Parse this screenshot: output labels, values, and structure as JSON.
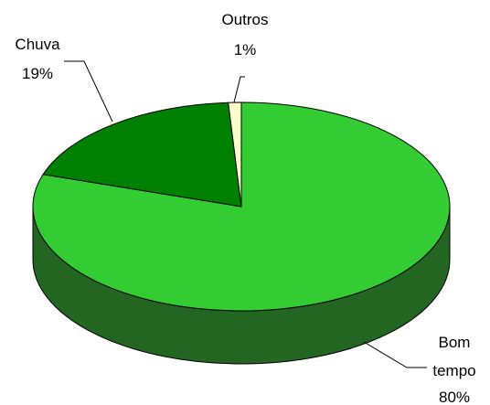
{
  "chart_data": {
    "type": "pie",
    "style": "3d",
    "labels": [
      "Bom tempo",
      "Chuva",
      "Outros"
    ],
    "values": [
      80,
      19,
      1
    ],
    "value_labels": [
      "80%",
      "19%",
      "1%"
    ],
    "colors": {
      "Bom tempo": {
        "top": "#33cc33",
        "side": "#226622"
      },
      "Chuva": {
        "top": "#008000",
        "side": "#0a4d0a"
      },
      "Outros": {
        "top": "#ffffcc",
        "side": "#cccc99"
      }
    },
    "outline_color": "#000000",
    "legend": "none"
  }
}
